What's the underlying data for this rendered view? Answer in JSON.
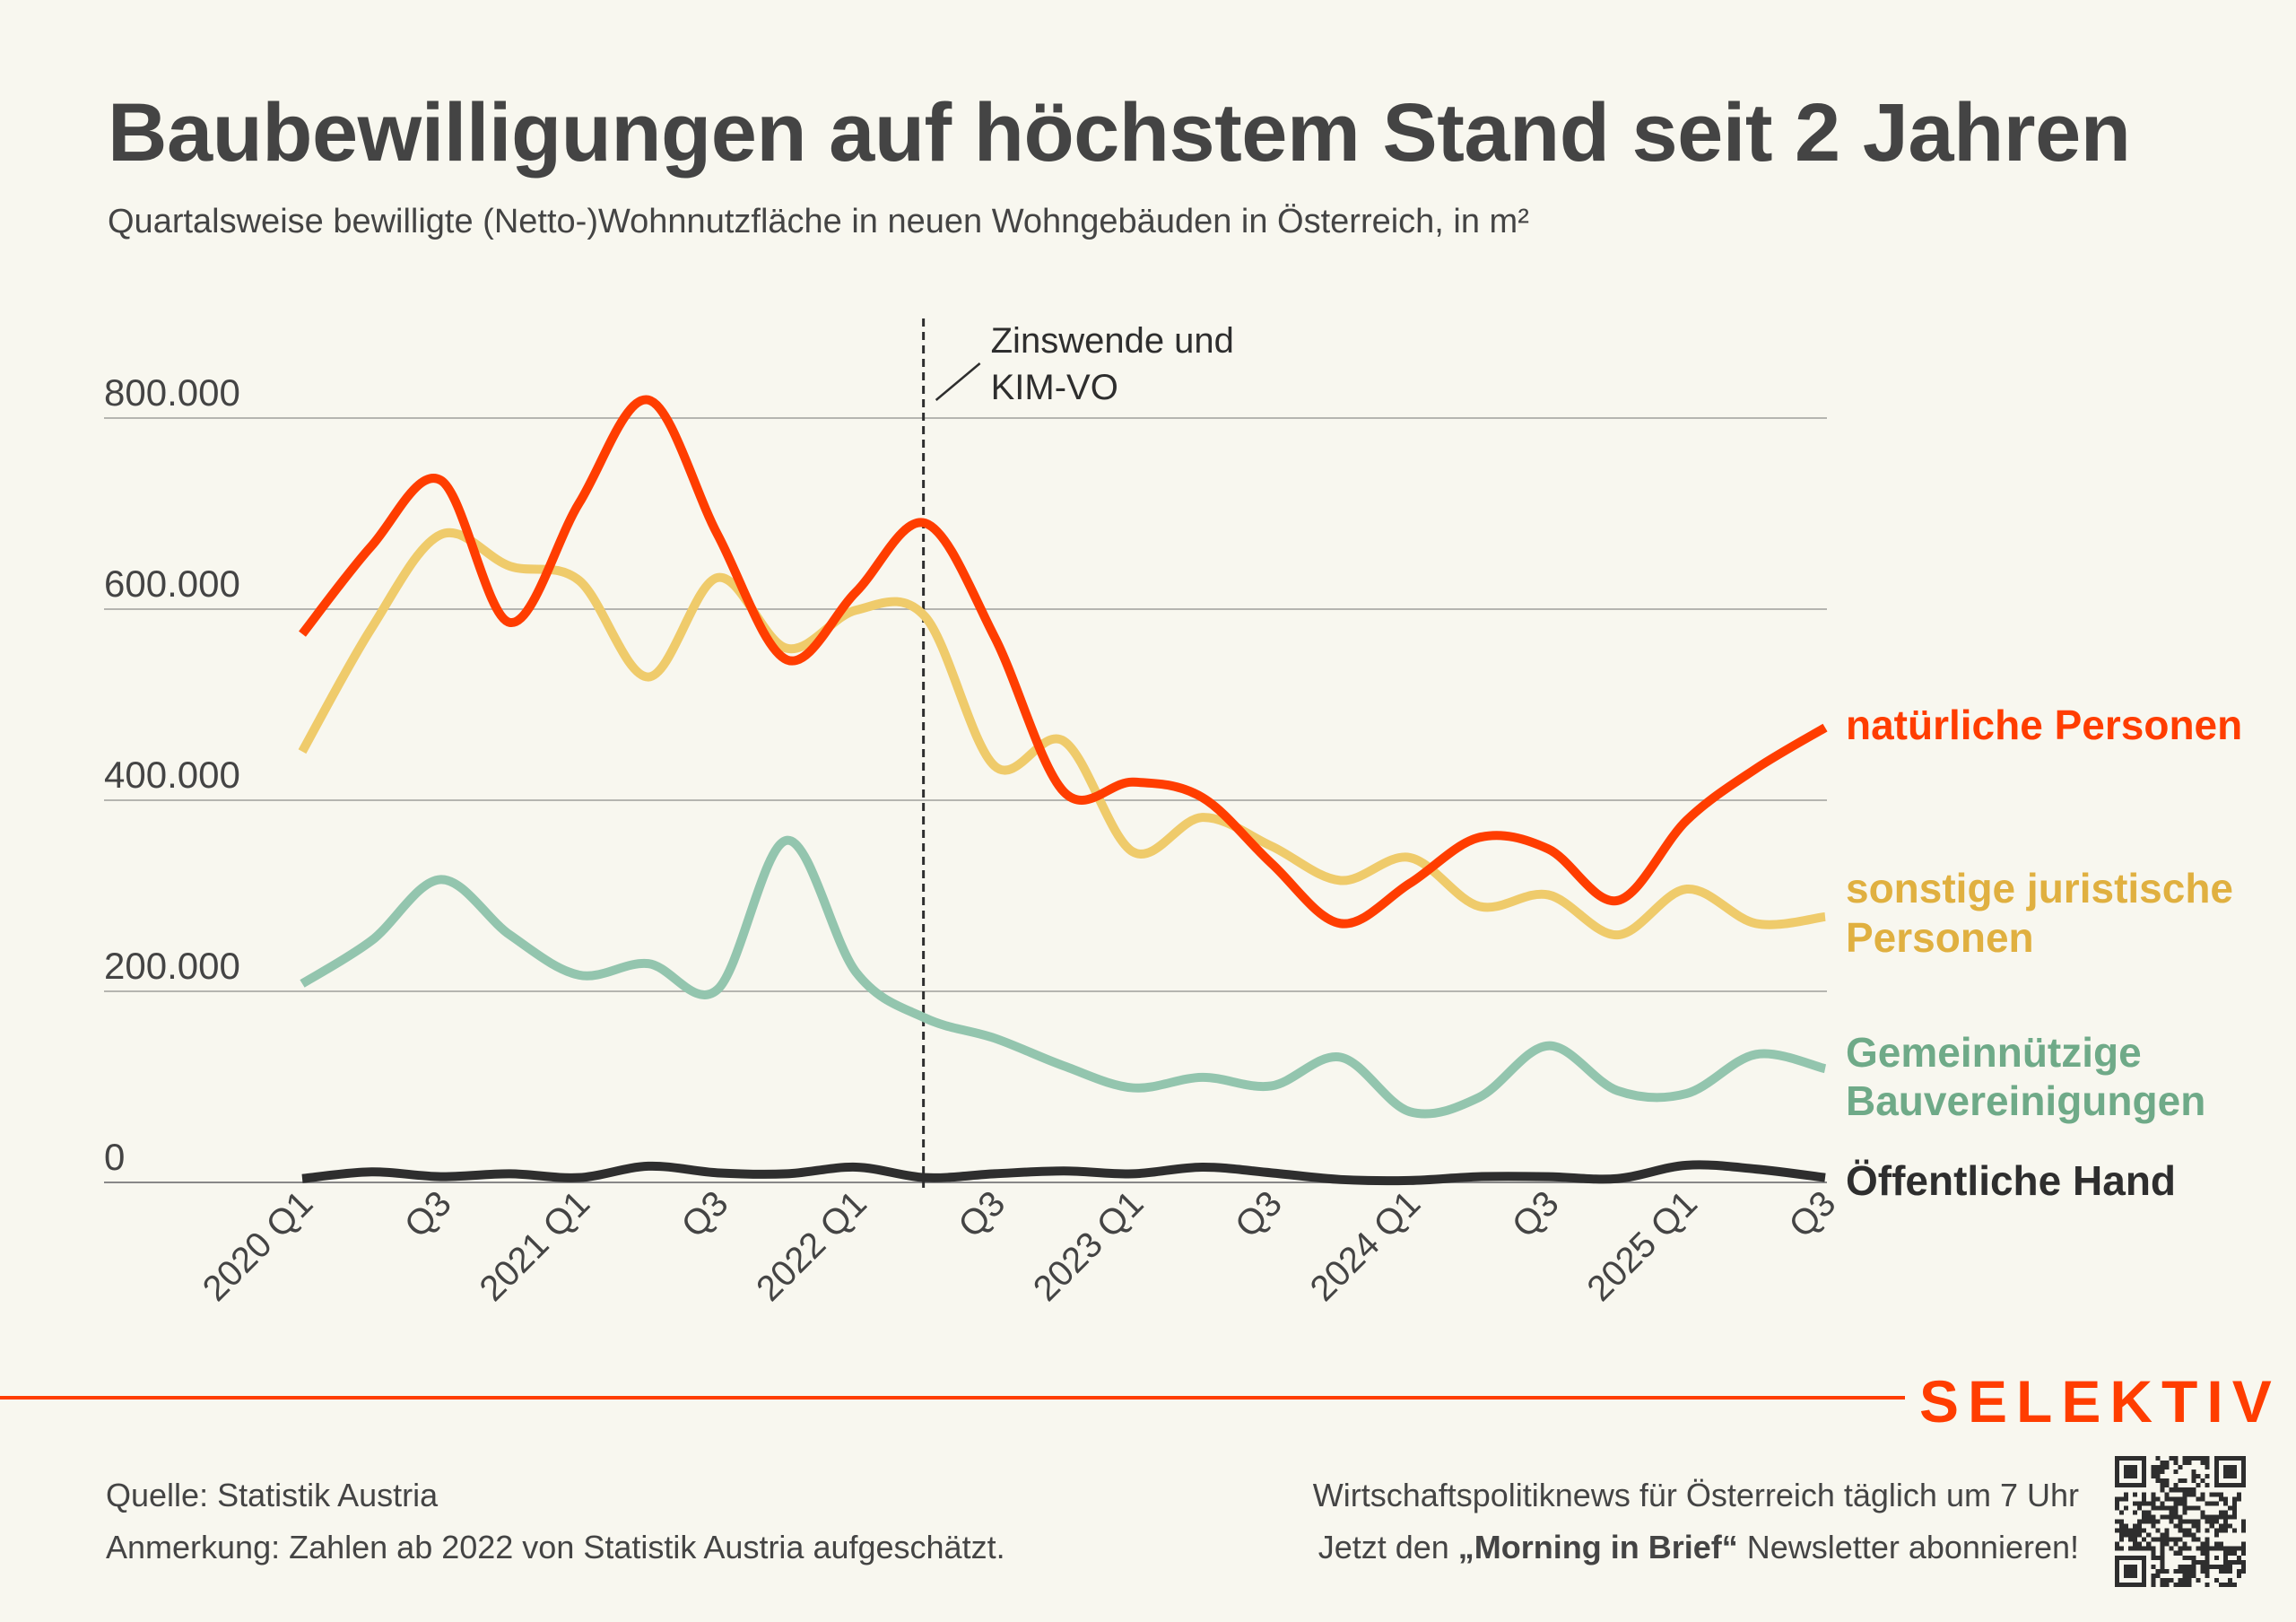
{
  "header": {
    "title": "Baubewilligungen auf höchstem Stand seit 2 Jahren",
    "subtitle": "Quartalsweise bewilligte (Netto-)Wohnnutzfläche in neuen Wohngebäuden in Österreich, in m²"
  },
  "chart_data": {
    "type": "line",
    "title": "Baubewilligungen auf höchstem Stand seit 2 Jahren",
    "subtitle": "Quartalsweise bewilligte (Netto-)Wohnnutzfläche in neuen Wohngebäuden in Österreich, in m²",
    "xlabel": "",
    "ylabel": "",
    "ylim": [
      0,
      800000
    ],
    "grid": true,
    "legend_placement": "right (direct labels at line ends)",
    "x": [
      "2020 Q1",
      "2020 Q2",
      "2020 Q3",
      "2020 Q4",
      "2021 Q1",
      "2021 Q2",
      "2021 Q3",
      "2021 Q4",
      "2022 Q1",
      "2022 Q2",
      "2022 Q3",
      "2022 Q4",
      "2023 Q1",
      "2023 Q2",
      "2023 Q3",
      "2023 Q4",
      "2024 Q1",
      "2024 Q2",
      "2024 Q3",
      "2024 Q4",
      "2025 Q1",
      "2025 Q2",
      "2025 Q3"
    ],
    "x_tick_labels": [
      "2020 Q1",
      "Q3",
      "2021 Q1",
      "Q3",
      "2022 Q1",
      "Q3",
      "2023 Q1",
      "Q3",
      "2024 Q1",
      "Q3",
      "2025 Q1",
      "Q3"
    ],
    "x_tick_indices": [
      0,
      2,
      4,
      6,
      8,
      10,
      12,
      14,
      16,
      18,
      20,
      22
    ],
    "y_ticks": [
      0,
      200000,
      400000,
      600000,
      800000
    ],
    "y_tick_labels": [
      "0",
      "200.000",
      "400.000",
      "600.000",
      "800.000"
    ],
    "series": [
      {
        "name": "natürliche Personen",
        "label_lines": [
          "natürliche Personen"
        ],
        "color": "#FF3D00",
        "label_color": "#FF3D00",
        "values": [
          574000,
          666000,
          735000,
          586000,
          711000,
          819000,
          678000,
          547000,
          618000,
          690000,
          571000,
          409000,
          419000,
          403000,
          334000,
          271000,
          313000,
          361000,
          349000,
          295000,
          379000,
          433000,
          476000
        ]
      },
      {
        "name": "sonstige juristische Personen",
        "label_lines": [
          "sonstige juristische",
          "Personen"
        ],
        "color": "#EFCB6B",
        "label_color": "#E0B040",
        "values": [
          451000,
          580000,
          678000,
          645000,
          630000,
          529000,
          633000,
          559000,
          599000,
          592000,
          436000,
          462000,
          346000,
          382000,
          352000,
          316000,
          340000,
          289000,
          301000,
          259000,
          307000,
          271000,
          278000
        ]
      },
      {
        "name": "Gemeinnützige Bauvereinigungen",
        "label_lines": [
          "Gemeinnützige",
          "Bauvereinigungen"
        ],
        "color": "#93C5AE",
        "label_color": "#6FAA88",
        "values": [
          208000,
          253000,
          317000,
          259000,
          217000,
          229000,
          202000,
          358000,
          220000,
          172000,
          151000,
          122000,
          99000,
          110000,
          101000,
          131000,
          74000,
          89000,
          143000,
          96000,
          93000,
          134000,
          119000
        ]
      },
      {
        "name": "Öffentliche Hand",
        "label_lines": [
          "Öffentliche Hand"
        ],
        "color": "#2E2E2E",
        "label_color": "#2E2E2E",
        "values": [
          4000,
          11000,
          6000,
          9000,
          5000,
          17000,
          10000,
          9000,
          16000,
          5000,
          9000,
          12000,
          9000,
          16000,
          10000,
          3000,
          2000,
          6000,
          6000,
          4000,
          18000,
          14000,
          5000
        ]
      }
    ],
    "annotations": [
      {
        "x": "2022 Q2",
        "type": "vertical-dashed-line",
        "text_lines": [
          "Zinswende und",
          "KIM-VO"
        ]
      }
    ]
  },
  "footer": {
    "source": "Quelle: Statistik Austria",
    "note": "Anmerkung: Zahlen ab 2022 von Statistik Austria aufgeschätzt.",
    "promo_line1": "Wirtschaftspolitiknews für Österreich täglich um 7 Uhr",
    "promo_line2_prefix": "Jetzt den ",
    "promo_line2_bold": "„Morning in Brief“",
    "promo_line2_suffix": " Newsletter abonnieren!",
    "brand": "SELEKTIV",
    "qr_icon": "qr-code-icon"
  },
  "colors": {
    "background": "#F8F7EF",
    "accent": "#FF3D00",
    "text": "#444444",
    "grid": "#AAAAAA"
  }
}
